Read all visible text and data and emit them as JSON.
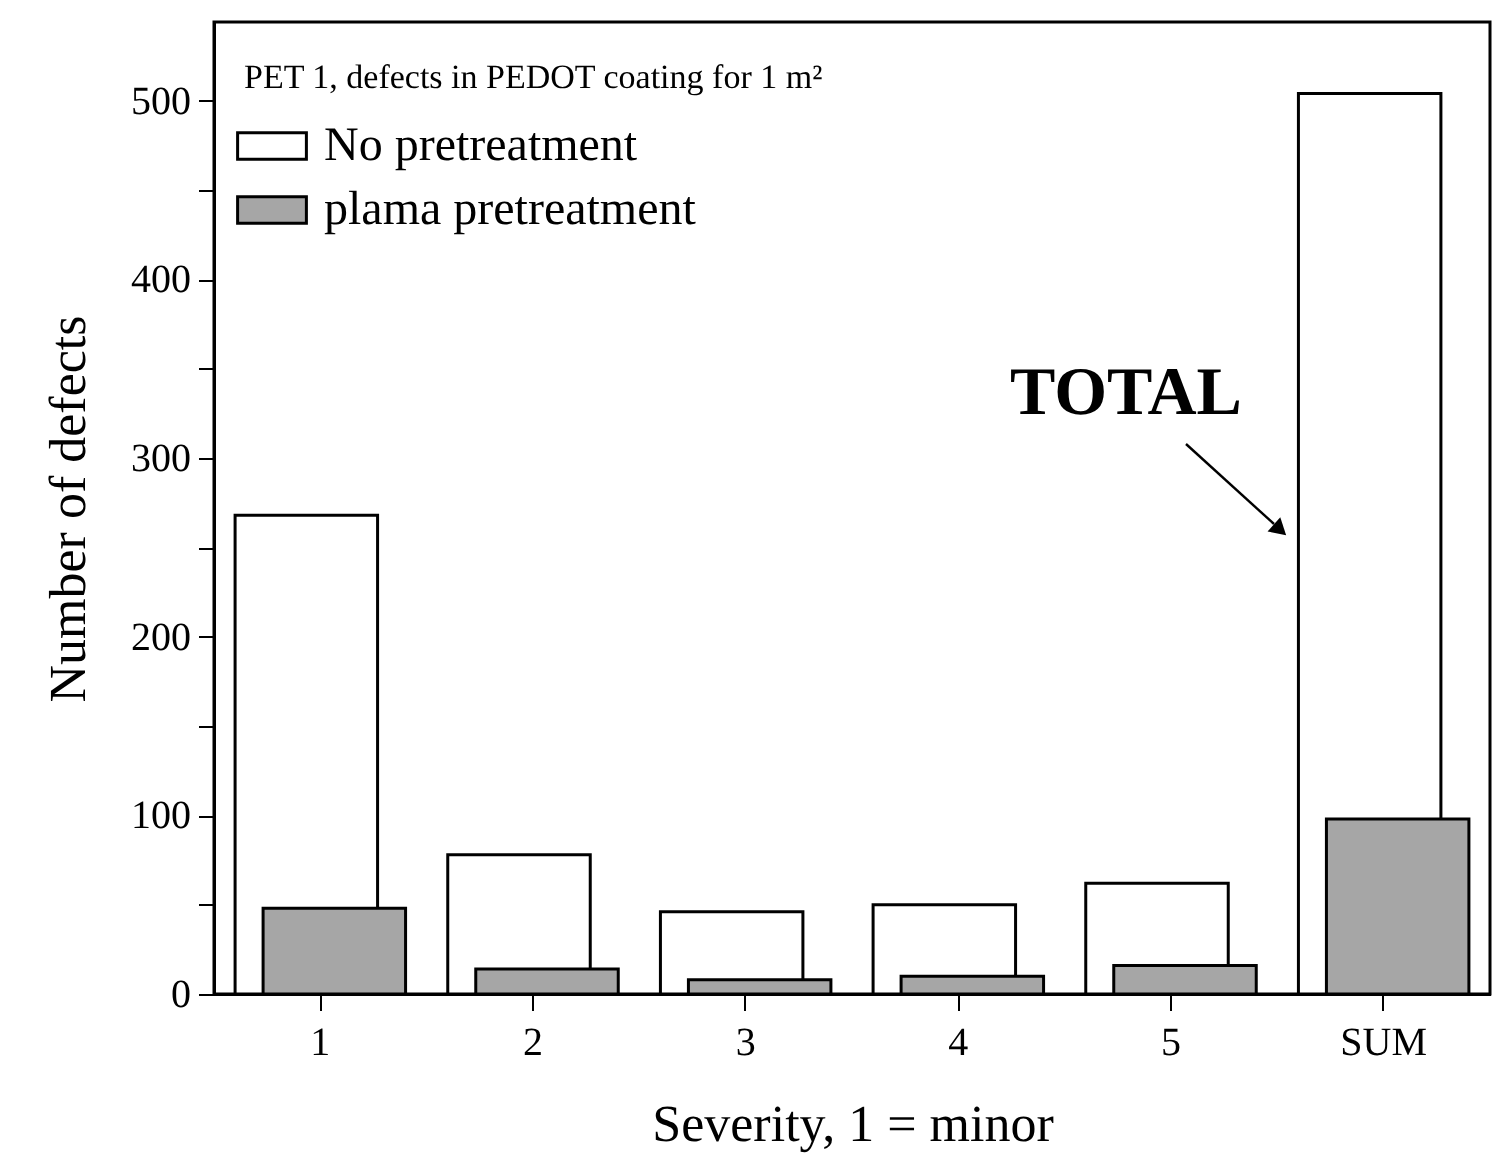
{
  "chart_data": {
    "type": "bar",
    "title": "PET 1, defects in PEDOT coating for 1 m²",
    "xlabel": "Severity, 1 = minor",
    "ylabel": "Number of defects",
    "categories": [
      "1",
      "2",
      "3",
      "4",
      "5",
      "SUM"
    ],
    "series": [
      {
        "name": "No pretreatment",
        "color": "#ffffff",
        "values": [
          268,
          78,
          46,
          50,
          62,
          504
        ]
      },
      {
        "name": "plama pretreatment",
        "color": "#a6a6a6",
        "values": [
          48,
          14,
          8,
          10,
          16,
          98
        ]
      }
    ],
    "ylim": [
      0,
      544
    ],
    "yticks": [
      0,
      {
        "value": 50,
        "label": null
      },
      100,
      {
        "value": 150,
        "label": null
      },
      200,
      {
        "value": 250,
        "label": null
      },
      300,
      {
        "value": 350,
        "label": null
      },
      400,
      {
        "value": 450,
        "label": null
      },
      500
    ],
    "annotations": [
      "TOTAL"
    ],
    "legend": "top left",
    "grid": false
  }
}
